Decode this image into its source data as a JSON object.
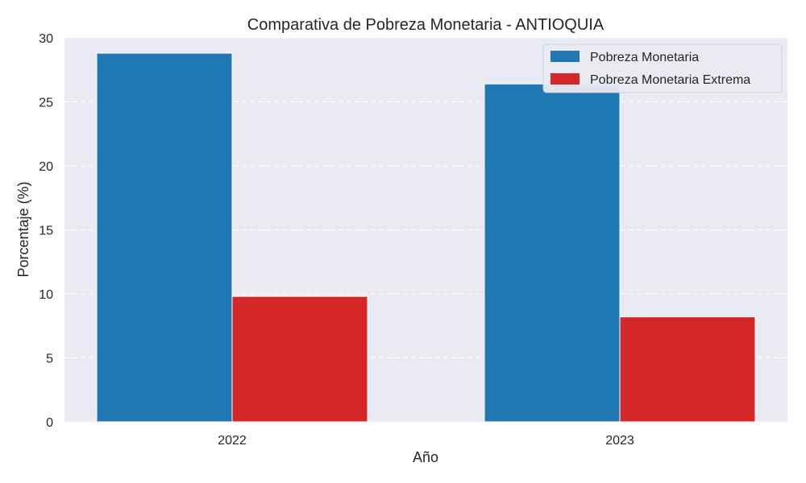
{
  "chart_data": {
    "type": "bar",
    "title": "Comparativa de Pobreza Monetaria - ANTIOQUIA",
    "xlabel": "Año",
    "ylabel": "Porcentaje (%)",
    "categories": [
      "2022",
      "2023"
    ],
    "series": [
      {
        "name": "Pobreza Monetaria",
        "values": [
          28.8,
          26.4
        ],
        "color": "#1f77b4"
      },
      {
        "name": "Pobreza Monetaria Extrema",
        "values": [
          9.8,
          8.2
        ],
        "color": "#d62728"
      }
    ],
    "ylim": [
      0,
      30
    ],
    "yticks": [
      0,
      5,
      10,
      15,
      20,
      25,
      30
    ],
    "grid": true,
    "legend_position": "top-right",
    "background": "#eaeaf2"
  }
}
